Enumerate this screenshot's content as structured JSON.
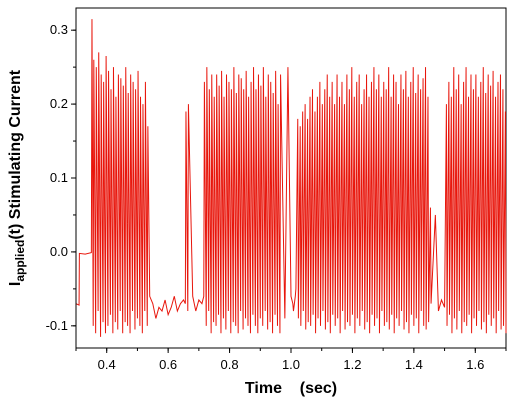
{
  "chart_data": {
    "type": "line",
    "title": "",
    "xlabel": "Time    (sec)",
    "ylabel": {
      "prefix": "I",
      "subscript": "applied",
      "suffix": "(t)",
      "secondary": "Stimulating Current"
    },
    "xlim": [
      0.3,
      1.7
    ],
    "ylim": [
      -0.13,
      0.33
    ],
    "x_ticks": [
      0.4,
      0.6,
      0.8,
      1.0,
      1.2,
      1.4,
      1.6
    ],
    "x_tick_labels": [
      "0.4",
      "0.6",
      "0.8",
      "1.0",
      "1.2",
      "1.4",
      "1.6"
    ],
    "y_ticks": [
      -0.1,
      0.0,
      0.1,
      0.2,
      0.3
    ],
    "y_tick_labels": [
      "-0.1",
      "0.0",
      "0.1",
      "0.2",
      "0.3"
    ],
    "grid": false,
    "legend": "none",
    "series": [
      {
        "color": "#e8160c",
        "x": [
          0.3,
          0.31,
          0.311,
          0.33,
          0.35,
          0.352,
          0.356,
          0.358,
          0.364,
          0.366,
          0.372,
          0.374,
          0.38,
          0.382,
          0.388,
          0.39,
          0.396,
          0.398,
          0.404,
          0.406,
          0.412,
          0.414,
          0.42,
          0.422,
          0.428,
          0.43,
          0.436,
          0.438,
          0.444,
          0.446,
          0.452,
          0.454,
          0.46,
          0.462,
          0.468,
          0.47,
          0.476,
          0.478,
          0.484,
          0.486,
          0.492,
          0.494,
          0.5,
          0.502,
          0.508,
          0.51,
          0.516,
          0.518,
          0.524,
          0.526,
          0.532,
          0.534,
          0.54,
          0.55,
          0.56,
          0.57,
          0.58,
          0.59,
          0.6,
          0.61,
          0.62,
          0.63,
          0.64,
          0.65,
          0.656,
          0.658,
          0.664,
          0.666,
          0.68,
          0.69,
          0.7,
          0.71,
          0.716,
          0.718,
          0.724,
          0.726,
          0.732,
          0.734,
          0.74,
          0.742,
          0.748,
          0.75,
          0.756,
          0.758,
          0.764,
          0.766,
          0.772,
          0.774,
          0.78,
          0.782,
          0.788,
          0.79,
          0.796,
          0.798,
          0.804,
          0.806,
          0.812,
          0.814,
          0.82,
          0.822,
          0.828,
          0.83,
          0.836,
          0.838,
          0.844,
          0.846,
          0.852,
          0.854,
          0.86,
          0.862,
          0.868,
          0.87,
          0.876,
          0.878,
          0.884,
          0.886,
          0.892,
          0.894,
          0.9,
          0.902,
          0.908,
          0.91,
          0.916,
          0.918,
          0.924,
          0.926,
          0.932,
          0.934,
          0.94,
          0.942,
          0.948,
          0.95,
          0.956,
          0.958,
          0.964,
          0.966,
          0.98,
          0.99,
          1.0,
          1.006,
          1.008,
          1.014,
          1.016,
          1.022,
          1.024,
          1.03,
          1.032,
          1.038,
          1.04,
          1.046,
          1.048,
          1.054,
          1.056,
          1.062,
          1.064,
          1.07,
          1.072,
          1.078,
          1.08,
          1.086,
          1.088,
          1.094,
          1.096,
          1.102,
          1.104,
          1.11,
          1.112,
          1.118,
          1.12,
          1.126,
          1.128,
          1.134,
          1.136,
          1.142,
          1.144,
          1.15,
          1.152,
          1.158,
          1.16,
          1.166,
          1.168,
          1.174,
          1.176,
          1.182,
          1.184,
          1.19,
          1.192,
          1.198,
          1.2,
          1.206,
          1.208,
          1.214,
          1.216,
          1.222,
          1.224,
          1.23,
          1.232,
          1.238,
          1.24,
          1.246,
          1.248,
          1.254,
          1.256,
          1.262,
          1.264,
          1.27,
          1.272,
          1.278,
          1.28,
          1.286,
          1.288,
          1.294,
          1.296,
          1.302,
          1.304,
          1.31,
          1.312,
          1.318,
          1.32,
          1.326,
          1.328,
          1.334,
          1.336,
          1.342,
          1.344,
          1.35,
          1.352,
          1.358,
          1.36,
          1.366,
          1.368,
          1.374,
          1.376,
          1.382,
          1.384,
          1.39,
          1.392,
          1.398,
          1.4,
          1.406,
          1.408,
          1.414,
          1.416,
          1.422,
          1.424,
          1.43,
          1.432,
          1.438,
          1.44,
          1.446,
          1.448,
          1.454,
          1.456,
          1.47,
          1.48,
          1.49,
          1.5,
          1.506,
          1.508,
          1.514,
          1.516,
          1.522,
          1.524,
          1.53,
          1.532,
          1.538,
          1.54,
          1.546,
          1.548,
          1.554,
          1.556,
          1.562,
          1.564,
          1.57,
          1.572,
          1.578,
          1.58,
          1.586,
          1.588,
          1.594,
          1.596,
          1.602,
          1.604,
          1.61,
          1.612,
          1.618,
          1.62,
          1.626,
          1.628,
          1.634,
          1.636,
          1.642,
          1.644,
          1.65,
          1.652,
          1.658,
          1.66,
          1.666,
          1.668,
          1.674,
          1.676,
          1.682,
          1.684,
          1.69,
          1.692,
          1.698,
          1.7
        ],
        "y": [
          -0.07,
          -0.072,
          -0.002,
          -0.003,
          -0.001,
          0.315,
          -0.1,
          0.26,
          -0.11,
          0.25,
          -0.08,
          0.27,
          -0.115,
          0.24,
          -0.095,
          0.23,
          -0.11,
          0.265,
          -0.1,
          0.245,
          -0.085,
          0.22,
          -0.11,
          0.25,
          -0.095,
          0.21,
          -0.105,
          0.24,
          -0.08,
          0.235,
          -0.11,
          0.225,
          -0.095,
          0.25,
          -0.1,
          0.215,
          -0.11,
          0.24,
          -0.08,
          0.23,
          -0.105,
          0.22,
          -0.09,
          0.245,
          -0.1,
          0.21,
          -0.11,
          0.2,
          -0.08,
          0.23,
          -0.1,
          0.17,
          -0.06,
          -0.07,
          -0.09,
          -0.075,
          -0.08,
          -0.065,
          -0.085,
          -0.075,
          -0.06,
          -0.08,
          -0.07,
          -0.065,
          -0.07,
          0.19,
          -0.08,
          0.2,
          -0.06,
          -0.08,
          -0.065,
          -0.07,
          -0.06,
          0.23,
          -0.1,
          0.25,
          -0.08,
          0.22,
          -0.11,
          0.24,
          -0.095,
          0.21,
          -0.1,
          0.24,
          -0.085,
          0.225,
          -0.11,
          0.245,
          -0.09,
          0.21,
          -0.105,
          0.24,
          -0.08,
          0.23,
          -0.11,
          0.22,
          -0.095,
          0.25,
          -0.1,
          0.215,
          -0.11,
          0.24,
          -0.08,
          0.235,
          -0.105,
          0.22,
          -0.09,
          0.245,
          -0.1,
          0.21,
          -0.11,
          0.23,
          -0.085,
          0.25,
          -0.1,
          0.22,
          -0.11,
          0.24,
          -0.09,
          0.225,
          -0.1,
          0.25,
          -0.08,
          0.21,
          -0.105,
          0.24,
          -0.095,
          0.23,
          -0.11,
          0.215,
          -0.085,
          0.245,
          -0.1,
          0.2,
          -0.11,
          0.24,
          -0.09,
          0.25,
          -0.06,
          -0.07,
          -0.08,
          -0.06,
          -0.05,
          0.18,
          -0.09,
          0.17,
          -0.1,
          0.19,
          -0.08,
          0.2,
          -0.105,
          0.18,
          -0.095,
          0.21,
          -0.1,
          0.22,
          -0.085,
          0.19,
          -0.11,
          0.21,
          -0.09,
          0.23,
          -0.1,
          0.2,
          -0.08,
          0.22,
          -0.105,
          0.24,
          -0.095,
          0.21,
          -0.11,
          0.23,
          -0.085,
          0.2,
          -0.1,
          0.24,
          -0.09,
          0.21,
          -0.11,
          0.23,
          -0.08,
          0.2,
          -0.105,
          0.24,
          -0.095,
          0.22,
          -0.1,
          0.25,
          -0.085,
          0.21,
          -0.11,
          0.23,
          -0.09,
          0.24,
          -0.1,
          0.2,
          -0.08,
          0.22,
          -0.105,
          0.24,
          -0.095,
          0.21,
          -0.11,
          0.23,
          -0.085,
          0.25,
          -0.1,
          0.22,
          -0.09,
          0.24,
          -0.11,
          0.21,
          -0.08,
          0.23,
          -0.1,
          0.22,
          -0.095,
          0.25,
          -0.105,
          0.21,
          -0.085,
          0.24,
          -0.11,
          0.23,
          -0.09,
          0.2,
          -0.1,
          0.24,
          -0.08,
          0.22,
          -0.105,
          0.245,
          -0.095,
          0.21,
          -0.11,
          0.23,
          -0.085,
          0.25,
          -0.1,
          0.215,
          -0.09,
          0.24,
          -0.11,
          0.22,
          -0.08,
          0.235,
          -0.1,
          0.25,
          -0.105,
          0.21,
          -0.095,
          0.06,
          -0.07,
          0.05,
          -0.08,
          -0.065,
          -0.075,
          0.2,
          -0.1,
          0.23,
          -0.085,
          0.21,
          -0.11,
          0.25,
          -0.09,
          0.22,
          -0.105,
          0.24,
          -0.08,
          0.2,
          -0.11,
          0.23,
          -0.095,
          0.25,
          -0.1,
          0.21,
          -0.085,
          0.24,
          -0.11,
          0.22,
          -0.09,
          0.24,
          -0.1,
          0.21,
          -0.08,
          0.23,
          -0.105,
          0.25,
          -0.095,
          0.215,
          -0.11,
          0.24,
          -0.085,
          0.225,
          -0.1,
          0.245,
          -0.09,
          0.21,
          -0.11,
          0.23,
          -0.08,
          0.24,
          -0.105,
          0.22,
          -0.1,
          0.19,
          -0.11
        ]
      }
    ]
  }
}
